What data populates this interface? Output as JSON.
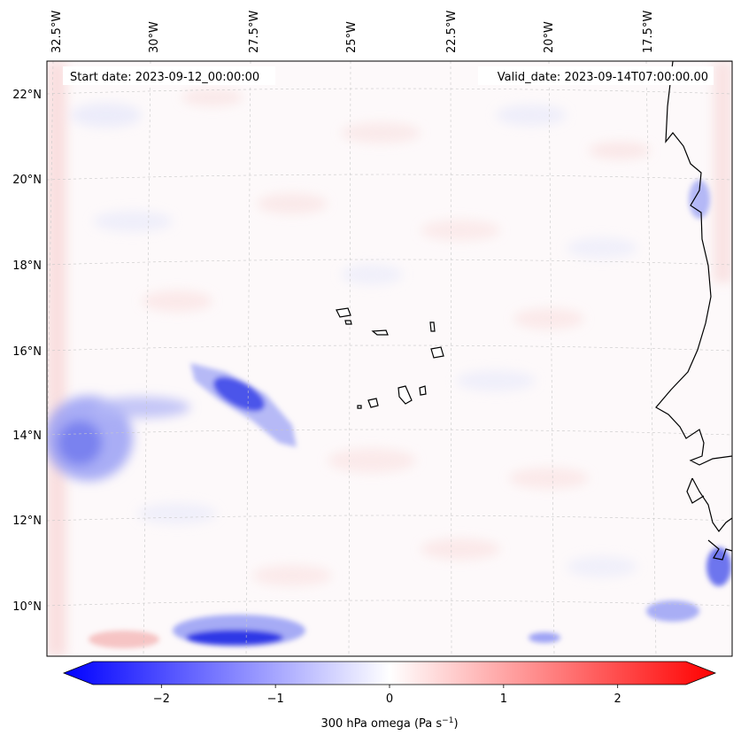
{
  "header": {
    "start_label": "Start date: 2023-09-12_00:00:00",
    "valid_label": "Valid_date: 2023-09-14T07:00:00.00"
  },
  "lon_labels": [
    "32.5°W",
    "30°W",
    "27.5°W",
    "25°W",
    "22.5°W",
    "20°W",
    "17.5°W"
  ],
  "lat_labels": [
    "22°N",
    "20°N",
    "18°N",
    "16°N",
    "14°N",
    "12°N",
    "10°N"
  ],
  "colorbar": {
    "label": "300 hPa omega (Pa s",
    "label_exp": "−1",
    "label_close": ")",
    "ticks": [
      "−2",
      "−1",
      "0",
      "1",
      "2"
    ],
    "tick_values": [
      -2,
      -1,
      0,
      1,
      2
    ],
    "range": [
      -2.6,
      2.6
    ],
    "colors": {
      "min": "#0000ff",
      "mid": "#ffffff",
      "max": "#ff0000"
    }
  },
  "colors": {
    "coast": "#000000",
    "grid": "#bbbbbb"
  }
}
